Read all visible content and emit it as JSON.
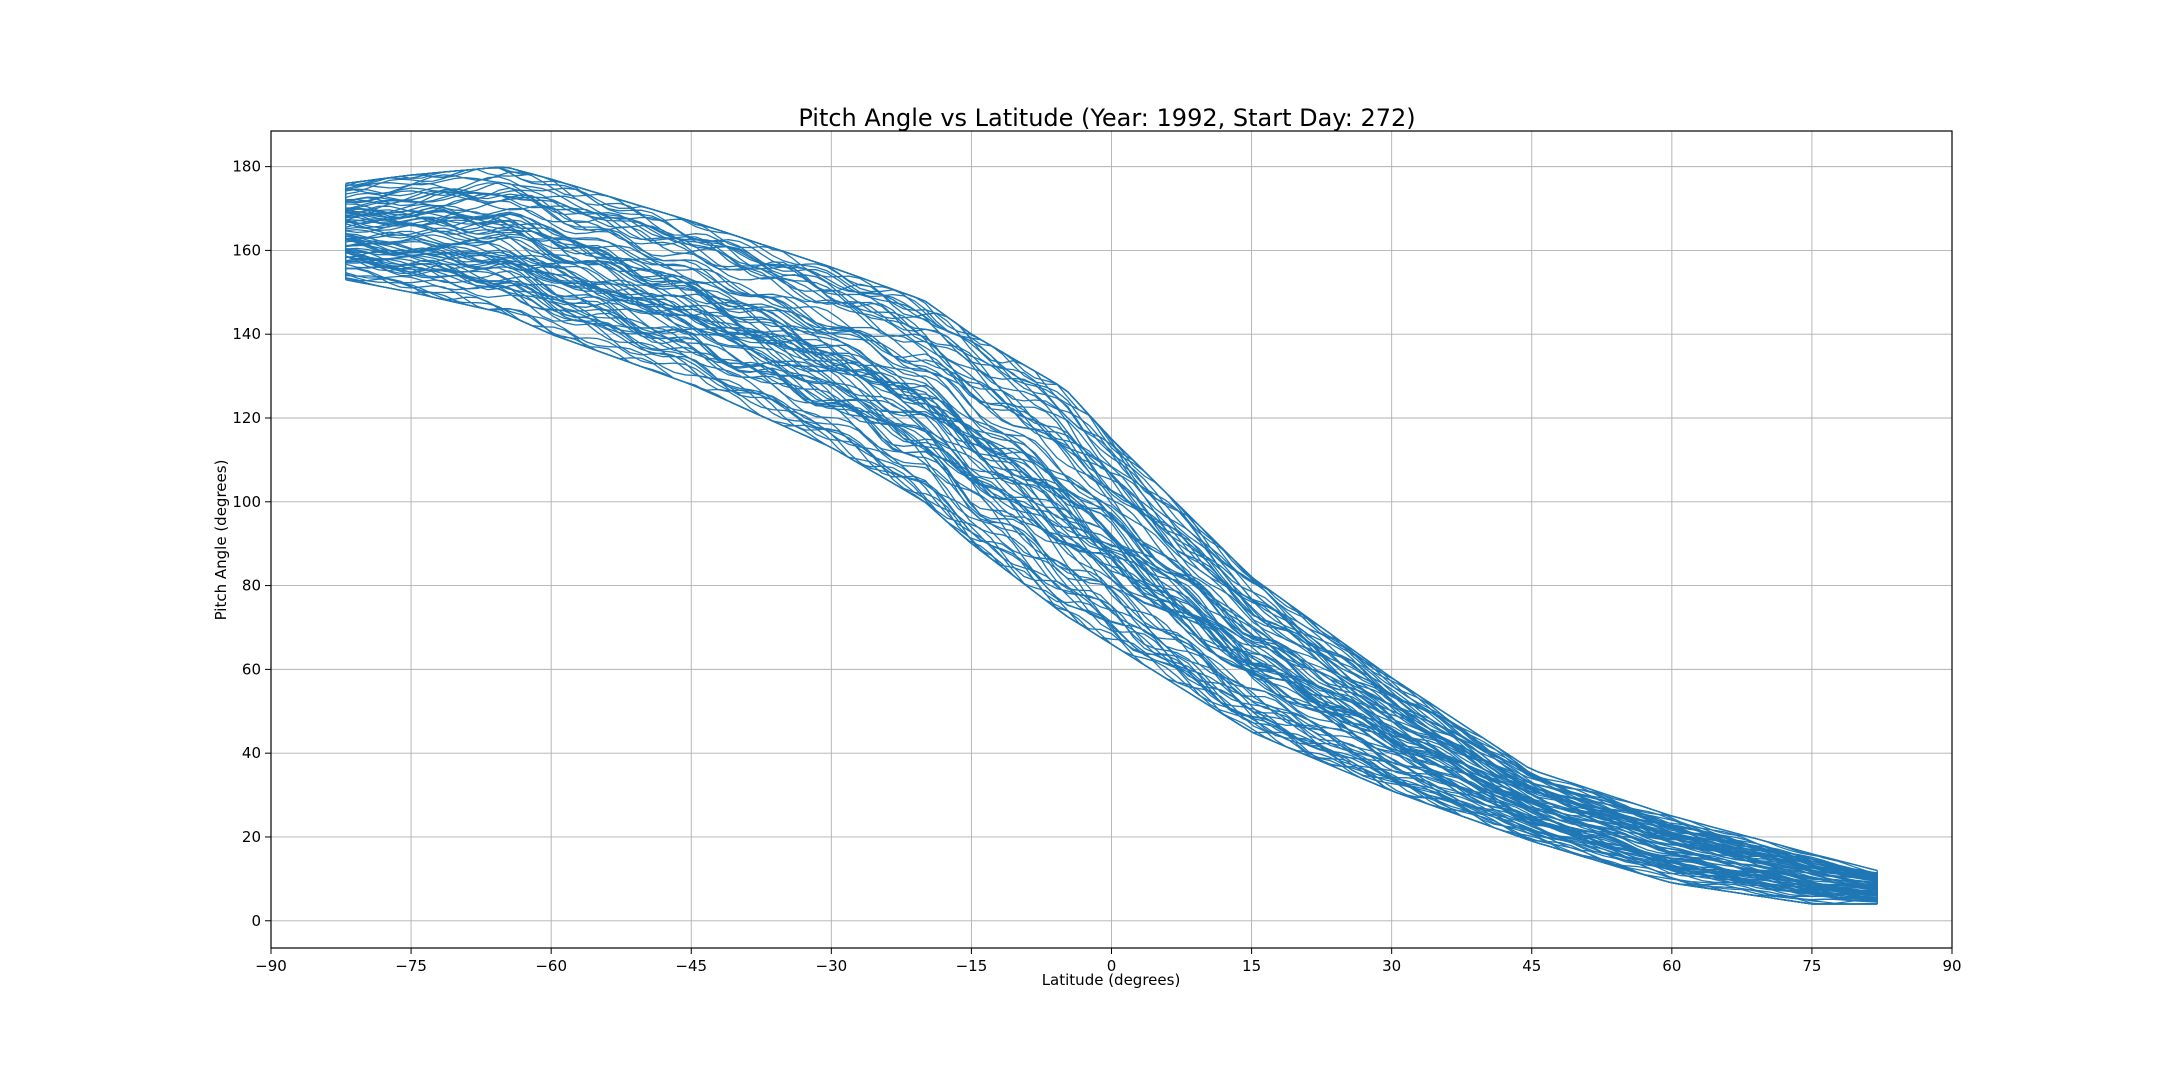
{
  "chart_data": {
    "type": "line",
    "title": "Pitch Angle vs Latitude (Year: 1992, Start Day: 272)",
    "xlabel": "Latitude (degrees)",
    "ylabel": "Pitch Angle (degrees)",
    "xlim": [
      -90,
      90
    ],
    "ylim": [
      -6.5,
      188.5
    ],
    "xticks": [
      -90,
      -75,
      -60,
      -45,
      -30,
      -15,
      0,
      15,
      30,
      45,
      60,
      75,
      90
    ],
    "xtick_labels": [
      "−90",
      "−75",
      "−60",
      "−45",
      "−30",
      "−15",
      "0",
      "15",
      "30",
      "45",
      "60",
      "75",
      "90"
    ],
    "yticks": [
      0,
      20,
      40,
      60,
      80,
      100,
      120,
      140,
      160,
      180
    ],
    "ytick_labels": [
      "0",
      "20",
      "40",
      "60",
      "80",
      "100",
      "120",
      "140",
      "160",
      "180"
    ],
    "grid": true,
    "legend": "none",
    "line_color": "#1f77b4",
    "band_summary": {
      "x": [
        -82,
        -75,
        -65,
        -60,
        -45,
        -30,
        -20,
        -15,
        -5,
        0,
        15,
        30,
        45,
        60,
        75,
        82
      ],
      "lower": [
        153,
        150,
        145,
        140,
        128,
        113,
        100,
        90,
        73,
        66,
        45,
        31,
        19,
        9,
        4,
        4
      ],
      "upper": [
        176,
        178,
        180,
        177,
        167,
        156,
        148,
        140,
        127,
        115,
        82,
        58,
        36,
        25,
        16,
        12
      ]
    }
  }
}
